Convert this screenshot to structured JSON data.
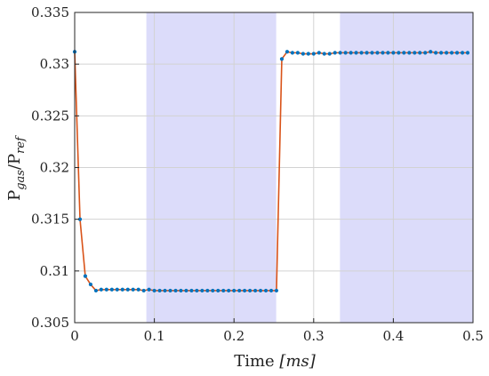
{
  "chart_data": {
    "type": "line",
    "title": "",
    "xlabel": {
      "main": "Time ",
      "unit": "[ms]"
    },
    "ylabel": {
      "p": "P",
      "sub1": "gas",
      "slash": "/P",
      "sub2": "ref"
    },
    "xlim": [
      0,
      0.5
    ],
    "ylim": [
      0.305,
      0.335
    ],
    "xticks": [
      "0",
      "0.1",
      "0.2",
      "0.3",
      "0.4",
      "0.5"
    ],
    "yticks": [
      "0.305",
      "0.31",
      "0.315",
      "0.32",
      "0.325",
      "0.33",
      "0.335"
    ],
    "grid": true,
    "shaded_regions": [
      {
        "x": [
          0.09,
          0.253
        ],
        "color": "#dcdcfa"
      },
      {
        "x": [
          0.333,
          0.5
        ],
        "color": "#dcdcfa"
      }
    ],
    "series": [
      {
        "line_color": "#d95319",
        "marker_color": "#0072bd",
        "x": [
          0,
          0.0067,
          0.0133,
          0.02,
          0.0267,
          0.0333,
          0.04,
          0.0467,
          0.0533,
          0.06,
          0.0667,
          0.0733,
          0.08,
          0.0867,
          0.0933,
          0.1,
          0.1067,
          0.1133,
          0.12,
          0.1267,
          0.1333,
          0.14,
          0.1467,
          0.1533,
          0.16,
          0.1667,
          0.1733,
          0.18,
          0.1867,
          0.1933,
          0.2,
          0.2067,
          0.2133,
          0.22,
          0.2267,
          0.2333,
          0.24,
          0.2467,
          0.2533,
          0.26,
          0.2667,
          0.2733,
          0.28,
          0.2867,
          0.2933,
          0.3,
          0.3067,
          0.3133,
          0.32,
          0.3267,
          0.3333,
          0.34,
          0.3467,
          0.3533,
          0.36,
          0.3667,
          0.3733,
          0.38,
          0.3867,
          0.3933,
          0.4,
          0.4067,
          0.4133,
          0.42,
          0.4267,
          0.4333,
          0.44,
          0.4467,
          0.4533,
          0.46,
          0.4667,
          0.4733,
          0.48,
          0.4867,
          0.4933
        ],
        "y": [
          0.3312,
          0.315,
          0.3095,
          0.3087,
          0.3081,
          0.3082,
          0.3082,
          0.3082,
          0.3082,
          0.3082,
          0.3082,
          0.3082,
          0.3082,
          0.3081,
          0.3082,
          0.3081,
          0.3081,
          0.3081,
          0.3081,
          0.3081,
          0.3081,
          0.3081,
          0.3081,
          0.3081,
          0.3081,
          0.3081,
          0.3081,
          0.3081,
          0.3081,
          0.3081,
          0.3081,
          0.3081,
          0.3081,
          0.3081,
          0.3081,
          0.3081,
          0.3081,
          0.3081,
          0.3081,
          0.3305,
          0.3312,
          0.3311,
          0.3311,
          0.331,
          0.331,
          0.331,
          0.3311,
          0.331,
          0.331,
          0.3311,
          0.3311,
          0.3311,
          0.3311,
          0.3311,
          0.3311,
          0.3311,
          0.3311,
          0.3311,
          0.3311,
          0.3311,
          0.3311,
          0.3311,
          0.3311,
          0.3311,
          0.3311,
          0.3311,
          0.3311,
          0.3312,
          0.3311,
          0.3311,
          0.3311,
          0.3311,
          0.3311,
          0.3311,
          0.3311
        ]
      }
    ]
  }
}
